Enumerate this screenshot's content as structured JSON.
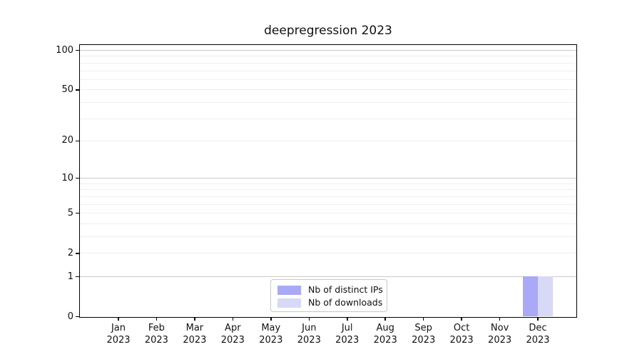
{
  "title": "deepregression 2023",
  "chart_data": {
    "type": "bar",
    "title": "deepregression 2023",
    "categories": [
      "Jan",
      "Feb",
      "Mar",
      "Apr",
      "May",
      "Jun",
      "Jul",
      "Aug",
      "Sep",
      "Oct",
      "Nov",
      "Dec"
    ],
    "category_year": "2023",
    "series": [
      {
        "name": "Nb of distinct IPs",
        "color": "#a9a9f7",
        "values": [
          0,
          0,
          0,
          0,
          0,
          0,
          0,
          0,
          0,
          0,
          0,
          1
        ]
      },
      {
        "name": "Nb of downloads",
        "color": "#d8d8f7",
        "values": [
          0,
          0,
          0,
          0,
          0,
          0,
          0,
          0,
          0,
          0,
          0,
          1
        ]
      }
    ],
    "yscale": "log1p",
    "ylabel": "",
    "xlabel": "",
    "yticks": [
      0,
      1,
      2,
      5,
      10,
      20,
      50,
      100
    ],
    "gridlines_major": [
      1,
      10,
      100
    ],
    "gridlines_minor": [
      2,
      3,
      4,
      5,
      6,
      7,
      8,
      9,
      20,
      30,
      40,
      50,
      60,
      70,
      80,
      90
    ],
    "ylim": [
      0,
      112
    ],
    "grid": true,
    "legend_position": "bottom-center",
    "legend_entries": [
      "Nb of distinct IPs",
      "Nb of downloads"
    ]
  },
  "colors": {
    "bar_distinct_ips": "#a9a9f7",
    "bar_downloads": "#d8d8f7",
    "grid_major": "#c9c9c9",
    "grid_minor": "#efefef",
    "axis": "#000000",
    "legend_border": "#c8c8c8"
  }
}
